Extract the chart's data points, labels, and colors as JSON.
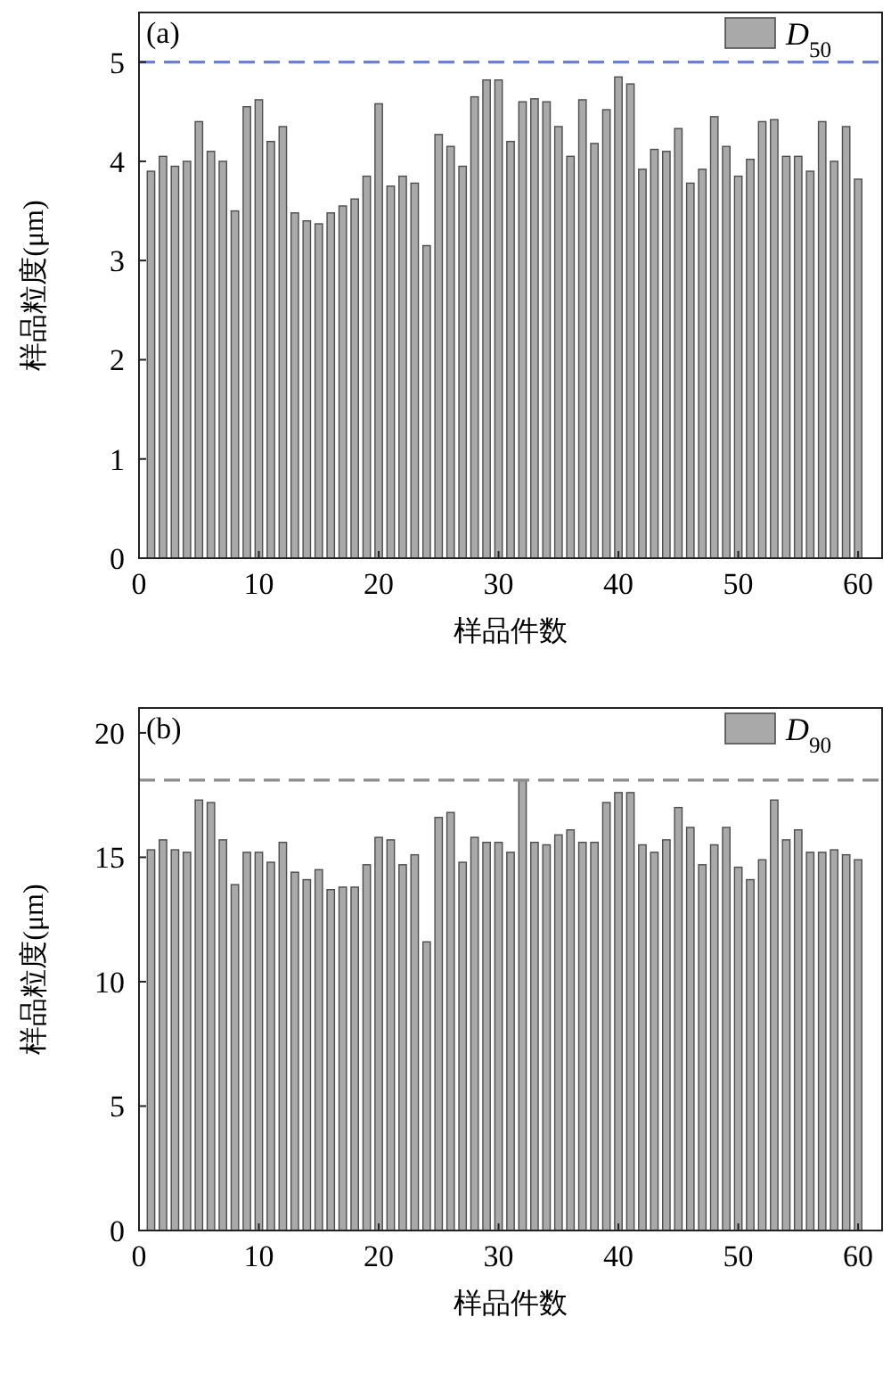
{
  "chart_data": [
    {
      "type": "bar",
      "title": "(a)",
      "xlabel": "样品件数",
      "ylabel": "样品粒度(μm)",
      "legend": "top right",
      "x": [
        1,
        2,
        3,
        4,
        5,
        6,
        7,
        8,
        9,
        10,
        11,
        12,
        13,
        14,
        15,
        16,
        17,
        18,
        19,
        20,
        21,
        22,
        23,
        24,
        25,
        26,
        27,
        28,
        29,
        30,
        31,
        32,
        33,
        34,
        35,
        36,
        37,
        38,
        39,
        40,
        41,
        42,
        43,
        44,
        45,
        46,
        47,
        48,
        49,
        50,
        51,
        52,
        53,
        54,
        55,
        56,
        57,
        58,
        59,
        60
      ],
      "series": [
        {
          "name": "D$_{50}$",
          "color": "#a9a9a9",
          "values": [
            3.9,
            4.05,
            3.95,
            4.0,
            4.4,
            4.1,
            4.0,
            3.5,
            4.55,
            4.62,
            4.2,
            4.35,
            3.48,
            3.4,
            3.37,
            3.48,
            3.55,
            3.62,
            3.85,
            4.58,
            3.75,
            3.85,
            3.78,
            3.15,
            4.27,
            4.15,
            3.95,
            4.65,
            4.82,
            4.82,
            4.2,
            4.6,
            4.63,
            4.6,
            4.35,
            4.05,
            4.62,
            4.18,
            4.52,
            4.85,
            4.78,
            3.92,
            4.12,
            4.1,
            4.33,
            3.78,
            3.92,
            4.45,
            4.15,
            3.85,
            4.02,
            4.4,
            4.42,
            4.05,
            4.05,
            3.9,
            4.4,
            4.0,
            4.35,
            3.82
          ]
        }
      ],
      "xlim": [
        0,
        62
      ],
      "xticks": [
        0,
        10,
        20,
        30,
        40,
        50,
        60
      ],
      "ylim": [
        0,
        5.5
      ],
      "yticks": [
        0,
        1,
        2,
        3,
        4,
        5
      ],
      "ref_lines": [
        {
          "axis": "y",
          "value": 5,
          "color": "#6f7fcc",
          "line_style": "dashed"
        }
      ]
    },
    {
      "type": "bar",
      "title": "(b)",
      "xlabel": "样品件数",
      "ylabel": "样品粒度(μm)",
      "legend": "top right",
      "x": [
        1,
        2,
        3,
        4,
        5,
        6,
        7,
        8,
        9,
        10,
        11,
        12,
        13,
        14,
        15,
        16,
        17,
        18,
        19,
        20,
        21,
        22,
        23,
        24,
        25,
        26,
        27,
        28,
        29,
        30,
        31,
        32,
        33,
        34,
        35,
        36,
        37,
        38,
        39,
        40,
        41,
        42,
        43,
        44,
        45,
        46,
        47,
        48,
        49,
        50,
        51,
        52,
        53,
        54,
        55,
        56,
        57,
        58,
        59,
        60
      ],
      "series": [
        {
          "name": "D$_{90}$",
          "color": "#a9a9a9",
          "values": [
            15.3,
            15.7,
            15.3,
            15.2,
            17.3,
            17.2,
            15.7,
            13.9,
            15.2,
            15.2,
            14.8,
            15.6,
            14.4,
            14.1,
            14.5,
            13.7,
            13.8,
            13.8,
            14.7,
            15.8,
            15.7,
            14.7,
            15.1,
            11.6,
            16.6,
            16.8,
            14.8,
            15.8,
            15.6,
            15.6,
            15.2,
            18.1,
            15.6,
            15.5,
            15.9,
            16.1,
            15.6,
            15.6,
            17.2,
            17.6,
            17.6,
            15.5,
            15.2,
            15.7,
            17.0,
            16.2,
            14.7,
            15.5,
            16.2,
            14.6,
            14.1,
            14.9,
            17.3,
            15.7,
            16.1,
            15.2,
            15.2,
            15.3,
            15.1,
            14.9
          ]
        }
      ],
      "xlim": [
        0,
        62
      ],
      "xticks": [
        0,
        10,
        20,
        30,
        40,
        50,
        60
      ],
      "ylim": [
        0,
        21
      ],
      "yticks": [
        0,
        5,
        10,
        15,
        20
      ],
      "ref_lines": [
        {
          "axis": "y",
          "value": 18.1,
          "color": "#8c8c8c",
          "line_style": "dashed"
        }
      ]
    }
  ]
}
